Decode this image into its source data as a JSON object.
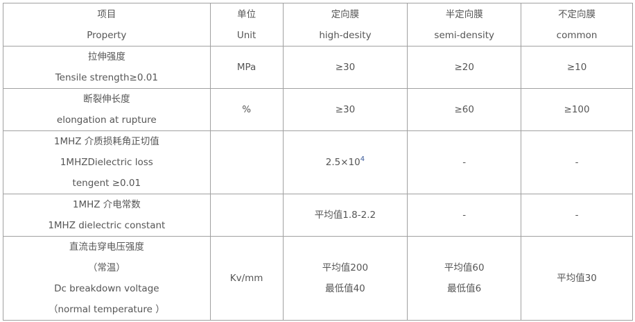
{
  "header": [
    [
      "项目",
      "Property"
    ],
    [
      "单位",
      "Unit"
    ],
    [
      "定向膜",
      "high-desity"
    ],
    [
      "半定向膜",
      "semi-density"
    ],
    [
      "不定向膜",
      "common"
    ]
  ],
  "rows": [
    {
      "property": [
        "拉伸强度",
        "Tensile strength≥0.01"
      ],
      "unit": "MPa",
      "high": [
        "≥30"
      ],
      "semi": [
        "≥20"
      ],
      "common": [
        "≥10"
      ]
    },
    {
      "property": [
        "断裂伸长度",
        "elongation at rupture"
      ],
      "unit": "%",
      "high": [
        "≥30"
      ],
      "semi": [
        "≥60"
      ],
      "common": [
        "≥100"
      ]
    },
    {
      "property": [
        "1MHZ 介质损耗角正切值",
        "1MHZDielectric loss",
        "tengent ≥0.01"
      ],
      "unit": "",
      "high_base": "2.5×10",
      "high_exp": "4",
      "semi": [
        "-"
      ],
      "common": [
        "-"
      ]
    },
    {
      "property": [
        "1MHZ 介电常数",
        "1MHZ dielectric constant"
      ],
      "unit": "",
      "high": [
        "平均值1.8-2.2"
      ],
      "semi": [
        "-"
      ],
      "common": [
        "-"
      ]
    },
    {
      "property": [
        "直流击穿电压强度",
        "（常温）",
        "Dc breakdown voltage",
        "（normal temperature ）"
      ],
      "unit": "Kv/mm",
      "high": [
        "平均值200",
        "最低值40"
      ],
      "semi": [
        "平均值60",
        "最低值6"
      ],
      "common": [
        "平均值30"
      ]
    }
  ]
}
